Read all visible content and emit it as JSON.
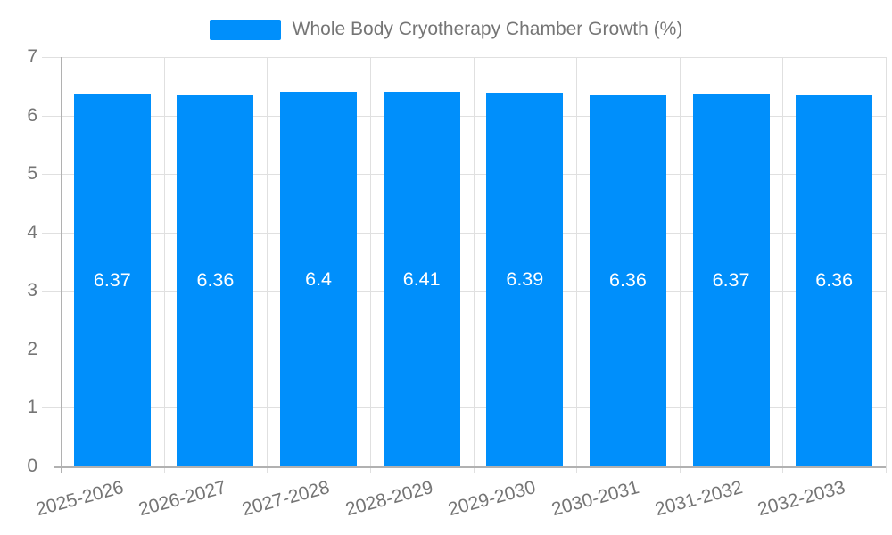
{
  "chart_data": {
    "type": "bar",
    "title": "Whole Body Cryotherapy Chamber Growth (%)",
    "categories": [
      "2025-2026",
      "2026-2027",
      "2027-2028",
      "2028-2029",
      "2029-2030",
      "2030-2031",
      "2031-2032",
      "2032-2033"
    ],
    "values": [
      6.37,
      6.36,
      6.4,
      6.41,
      6.39,
      6.36,
      6.37,
      6.36
    ],
    "value_labels": [
      "6.37",
      "6.36",
      "6.4",
      "6.41",
      "6.39",
      "6.36",
      "6.37",
      "6.36"
    ],
    "xlabel": "",
    "ylabel": "",
    "ylim": [
      0,
      7
    ],
    "yticks": [
      0,
      1,
      2,
      3,
      4,
      5,
      6,
      7
    ],
    "grid": true,
    "legend_position": "top",
    "colors": {
      "bar": "#008FFB",
      "grid": "#e0e0e0",
      "axis": "#b1b1b1",
      "axis_label": "#757575",
      "value_label": "#ffffff",
      "background": "#ffffff"
    }
  }
}
